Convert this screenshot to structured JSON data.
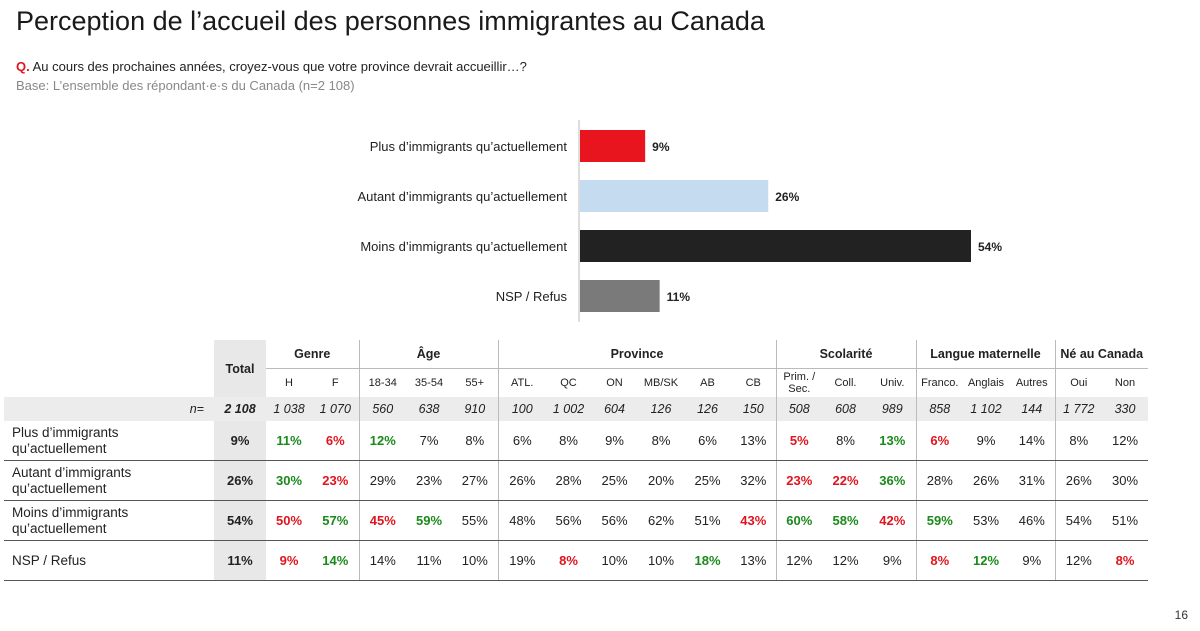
{
  "title": "Perception de l’accueil des personnes immigrantes au Canada",
  "question_prefix": "Q.",
  "question": "Au cours des prochaines années, croyez-vous que votre province devrait accueillir…?",
  "base": "Base: L’ensemble des répondant·e·s du Canada (n=2 108)",
  "page_number": "16",
  "chart_data": {
    "type": "bar",
    "orientation": "horizontal",
    "categories": [
      "Plus d’immigrants qu’actuellement",
      "Autant d’immigrants qu’actuellement",
      "Moins d’immigrants qu’actuellement",
      "NSP / Refus"
    ],
    "values": [
      9,
      26,
      54,
      11
    ],
    "value_labels": [
      "9%",
      "26%",
      "54%",
      "11%"
    ],
    "colors": [
      "#e8141e",
      "#c5dcf0",
      "#222222",
      "#7a7a7a"
    ],
    "xlim": [
      0,
      54
    ],
    "grid": false
  },
  "table": {
    "total_label": "Total",
    "groups": [
      {
        "label": "Genre",
        "cols": [
          "H",
          "F"
        ]
      },
      {
        "label": "Âge",
        "cols": [
          "18-34",
          "35-54",
          "55+"
        ]
      },
      {
        "label": "Province",
        "cols": [
          "ATL.",
          "QC",
          "ON",
          "MB/SK",
          "AB",
          "CB"
        ]
      },
      {
        "label": "Scolarité",
        "cols": [
          "Prim. / Sec.",
          "Coll.",
          "Univ."
        ]
      },
      {
        "label": "Langue maternelle",
        "cols": [
          "Franco.",
          "Anglais",
          "Autres"
        ]
      },
      {
        "label": "Né au Canada",
        "cols": [
          "Oui",
          "Non"
        ]
      }
    ],
    "n_label": "n=",
    "n_total": "2 108",
    "n_values": [
      "1 038",
      "1 070",
      "560",
      "638",
      "910",
      "100",
      "1 002",
      "604",
      "126",
      "126",
      "150",
      "508",
      "608",
      "989",
      "858",
      "1 102",
      "144",
      "1 772",
      "330"
    ],
    "rows": [
      {
        "label": "Plus d’immigrants qu’actuellement",
        "total": "9%",
        "values": [
          "11%",
          "6%",
          "12%",
          "7%",
          "8%",
          "6%",
          "8%",
          "9%",
          "8%",
          "6%",
          "13%",
          "5%",
          "8%",
          "13%",
          "6%",
          "9%",
          "14%",
          "8%",
          "12%"
        ],
        "flags": [
          "pos",
          "neg",
          "pos",
          "",
          "",
          "",
          "",
          "",
          "",
          "",
          "",
          "neg",
          "",
          "pos",
          "neg",
          "",
          "",
          "",
          ""
        ]
      },
      {
        "label": "Autant d’immigrants qu’actuellement",
        "total": "26%",
        "values": [
          "30%",
          "23%",
          "29%",
          "23%",
          "27%",
          "26%",
          "28%",
          "25%",
          "20%",
          "25%",
          "32%",
          "23%",
          "22%",
          "36%",
          "28%",
          "26%",
          "31%",
          "26%",
          "30%"
        ],
        "flags": [
          "pos",
          "neg",
          "",
          "",
          "",
          "",
          "",
          "",
          "",
          "",
          "",
          "neg",
          "neg",
          "pos",
          "",
          "",
          "",
          "",
          ""
        ]
      },
      {
        "label": "Moins d’immigrants qu’actuellement",
        "total": "54%",
        "values": [
          "50%",
          "57%",
          "45%",
          "59%",
          "55%",
          "48%",
          "56%",
          "56%",
          "62%",
          "51%",
          "43%",
          "60%",
          "58%",
          "42%",
          "59%",
          "53%",
          "46%",
          "54%",
          "51%"
        ],
        "flags": [
          "neg",
          "pos",
          "neg",
          "pos",
          "",
          "",
          "",
          "",
          "",
          "",
          "neg",
          "pos",
          "pos",
          "neg",
          "pos",
          "",
          "",
          "",
          ""
        ]
      },
      {
        "label": "NSP / Refus",
        "total": "11%",
        "values": [
          "9%",
          "14%",
          "14%",
          "11%",
          "10%",
          "19%",
          "8%",
          "10%",
          "10%",
          "18%",
          "13%",
          "12%",
          "12%",
          "9%",
          "8%",
          "12%",
          "9%",
          "12%",
          "8%"
        ],
        "flags": [
          "neg",
          "pos",
          "",
          "",
          "",
          "",
          "neg",
          "",
          "",
          "pos",
          "",
          "",
          "",
          "",
          "neg",
          "pos",
          "",
          "",
          "neg"
        ]
      }
    ]
  }
}
